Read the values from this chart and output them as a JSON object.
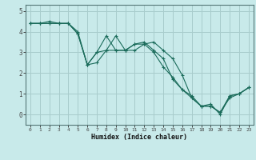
{
  "title": "",
  "xlabel": "Humidex (Indice chaleur)",
  "background_color": "#c8eaea",
  "grid_color": "#a8cccc",
  "line_color": "#1a6b5a",
  "marker_color": "#1a6b5a",
  "xlim": [
    -0.5,
    23.5
  ],
  "ylim": [
    -0.5,
    5.3
  ],
  "yticks": [
    0,
    1,
    2,
    3,
    4,
    5
  ],
  "xticks": [
    0,
    1,
    2,
    3,
    4,
    5,
    6,
    7,
    8,
    9,
    10,
    11,
    12,
    13,
    14,
    15,
    16,
    17,
    18,
    19,
    20,
    21,
    22,
    23
  ],
  "series": [
    [
      4.4,
      4.4,
      4.5,
      4.4,
      4.4,
      3.9,
      2.4,
      3.0,
      3.8,
      3.1,
      3.1,
      3.4,
      3.4,
      3.0,
      2.3,
      1.8,
      1.2,
      0.9,
      0.4,
      0.4,
      0.1,
      0.8,
      1.0,
      1.3
    ],
    [
      4.4,
      4.4,
      4.4,
      4.4,
      4.4,
      3.9,
      2.4,
      2.5,
      3.1,
      3.8,
      3.1,
      3.1,
      3.4,
      3.5,
      3.1,
      2.7,
      1.9,
      0.8,
      0.4,
      0.5,
      0.0,
      0.9,
      1.0,
      1.3
    ],
    [
      4.4,
      4.4,
      4.4,
      4.4,
      4.4,
      4.0,
      2.4,
      3.0,
      3.1,
      3.1,
      3.1,
      3.4,
      3.5,
      3.1,
      2.7,
      1.7,
      1.2,
      0.8,
      0.4,
      0.4,
      0.1,
      0.9,
      1.0,
      1.3
    ]
  ]
}
